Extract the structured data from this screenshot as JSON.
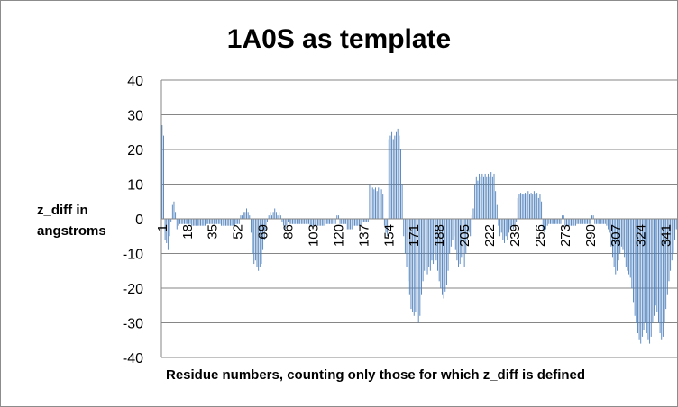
{
  "chart_data": {
    "type": "bar",
    "title": "1A0S as template",
    "ylabel_lines": [
      "z_diff in",
      "angstroms"
    ],
    "xlabel": "Residue numbers, counting only those for which z_diff is defined",
    "ylim": [
      -40,
      40
    ],
    "yticks": [
      40,
      30,
      20,
      10,
      0,
      -10,
      -20,
      -30,
      -40
    ],
    "xticks": [
      1,
      18,
      35,
      52,
      69,
      86,
      103,
      120,
      137,
      154,
      171,
      188,
      205,
      222,
      239,
      256,
      273,
      290,
      307,
      324,
      341
    ],
    "grid": "horizontal",
    "legend": "none",
    "bar_color": "#4f81bd",
    "n_residues": 348,
    "segments": [
      [
        1,
        1,
        27
      ],
      [
        2,
        2,
        24
      ],
      [
        3,
        3,
        -6
      ],
      [
        4,
        4,
        -7
      ],
      [
        5,
        5,
        -9
      ],
      [
        6,
        6,
        -5
      ],
      [
        7,
        7,
        -1
      ],
      [
        8,
        8,
        4
      ],
      [
        9,
        9,
        5
      ],
      [
        10,
        10,
        2
      ],
      [
        11,
        11,
        -3
      ],
      [
        12,
        12,
        -2
      ],
      [
        13,
        20,
        -1.5
      ],
      [
        21,
        30,
        -2
      ],
      [
        31,
        40,
        -1.5
      ],
      [
        41,
        50,
        -2
      ],
      [
        51,
        53,
        -1.5
      ],
      [
        54,
        55,
        1
      ],
      [
        56,
        57,
        2
      ],
      [
        58,
        58,
        3
      ],
      [
        59,
        59,
        2
      ],
      [
        60,
        60,
        1
      ],
      [
        61,
        61,
        -4
      ],
      [
        62,
        62,
        -10
      ],
      [
        63,
        63,
        -13
      ],
      [
        64,
        64,
        -12
      ],
      [
        65,
        65,
        -14
      ],
      [
        66,
        66,
        -15
      ],
      [
        67,
        67,
        -14
      ],
      [
        68,
        68,
        -13
      ],
      [
        69,
        69,
        -9
      ],
      [
        70,
        70,
        -6
      ],
      [
        71,
        71,
        -3
      ],
      [
        72,
        72,
        -1
      ],
      [
        73,
        73,
        1
      ],
      [
        74,
        74,
        2
      ],
      [
        75,
        75,
        1
      ],
      [
        76,
        76,
        2
      ],
      [
        77,
        77,
        3
      ],
      [
        78,
        78,
        2
      ],
      [
        79,
        79,
        1
      ],
      [
        80,
        80,
        2
      ],
      [
        81,
        81,
        1
      ],
      [
        82,
        82,
        -1
      ],
      [
        83,
        83,
        -2
      ],
      [
        84,
        84,
        -3
      ],
      [
        85,
        85,
        -2
      ],
      [
        86,
        86,
        -1
      ],
      [
        87,
        100,
        -1.5
      ],
      [
        101,
        110,
        -2
      ],
      [
        111,
        118,
        -1.5
      ],
      [
        119,
        120,
        1
      ],
      [
        121,
        125,
        -1.5
      ],
      [
        126,
        129,
        -3
      ],
      [
        130,
        135,
        -2
      ],
      [
        136,
        140,
        -1
      ],
      [
        141,
        141,
        10
      ],
      [
        142,
        142,
        9.5
      ],
      [
        143,
        143,
        9
      ],
      [
        144,
        144,
        8.5
      ],
      [
        145,
        145,
        9
      ],
      [
        146,
        146,
        8
      ],
      [
        147,
        147,
        9
      ],
      [
        148,
        148,
        8
      ],
      [
        149,
        149,
        8.5
      ],
      [
        150,
        150,
        7
      ],
      [
        151,
        151,
        -2
      ],
      [
        152,
        152,
        -4
      ],
      [
        153,
        153,
        -5
      ],
      [
        154,
        154,
        23
      ],
      [
        155,
        155,
        24
      ],
      [
        156,
        156,
        25
      ],
      [
        157,
        157,
        23
      ],
      [
        158,
        158,
        24
      ],
      [
        159,
        159,
        25
      ],
      [
        160,
        160,
        26
      ],
      [
        161,
        161,
        24
      ],
      [
        162,
        162,
        20
      ],
      [
        163,
        163,
        10
      ],
      [
        164,
        164,
        -5
      ],
      [
        165,
        165,
        -10
      ],
      [
        166,
        166,
        -14
      ],
      [
        167,
        167,
        -18
      ],
      [
        168,
        168,
        -22
      ],
      [
        169,
        169,
        -26
      ],
      [
        170,
        170,
        -27
      ],
      [
        171,
        171,
        -28
      ],
      [
        172,
        172,
        -27
      ],
      [
        173,
        173,
        -29
      ],
      [
        174,
        174,
        -30
      ],
      [
        175,
        175,
        -28
      ],
      [
        176,
        176,
        -22
      ],
      [
        177,
        177,
        -18
      ],
      [
        178,
        178,
        -15
      ],
      [
        179,
        179,
        -12
      ],
      [
        180,
        180,
        -16
      ],
      [
        181,
        181,
        -14
      ],
      [
        182,
        182,
        -15
      ],
      [
        183,
        183,
        -12
      ],
      [
        184,
        184,
        -13
      ],
      [
        185,
        185,
        -10
      ],
      [
        186,
        186,
        -12
      ],
      [
        187,
        187,
        -15
      ],
      [
        188,
        188,
        -18
      ],
      [
        189,
        189,
        -20
      ],
      [
        190,
        190,
        -22
      ],
      [
        191,
        191,
        -23
      ],
      [
        192,
        192,
        -21
      ],
      [
        193,
        193,
        -19
      ],
      [
        194,
        194,
        -15
      ],
      [
        195,
        195,
        -10
      ],
      [
        196,
        196,
        -8
      ],
      [
        197,
        197,
        -6
      ],
      [
        198,
        198,
        -5
      ],
      [
        199,
        199,
        -9
      ],
      [
        200,
        200,
        -12
      ],
      [
        201,
        201,
        -14
      ],
      [
        202,
        202,
        -13
      ],
      [
        203,
        203,
        -11
      ],
      [
        204,
        204,
        -13
      ],
      [
        205,
        205,
        -14
      ],
      [
        206,
        206,
        -10
      ],
      [
        207,
        207,
        -6
      ],
      [
        208,
        208,
        -4
      ],
      [
        209,
        209,
        -5
      ],
      [
        210,
        210,
        1
      ],
      [
        211,
        211,
        3
      ],
      [
        212,
        212,
        10
      ],
      [
        213,
        213,
        12
      ],
      [
        214,
        214,
        11
      ],
      [
        215,
        215,
        13
      ],
      [
        216,
        216,
        12
      ],
      [
        217,
        217,
        13
      ],
      [
        218,
        218,
        12
      ],
      [
        219,
        219,
        13
      ],
      [
        220,
        220,
        12
      ],
      [
        221,
        221,
        13
      ],
      [
        222,
        222,
        12
      ],
      [
        223,
        223,
        13.5
      ],
      [
        224,
        224,
        12
      ],
      [
        225,
        225,
        13
      ],
      [
        226,
        226,
        8
      ],
      [
        227,
        227,
        4
      ],
      [
        228,
        228,
        -2
      ],
      [
        229,
        229,
        -5
      ],
      [
        230,
        230,
        -4
      ],
      [
        231,
        231,
        -6
      ],
      [
        232,
        232,
        -7
      ],
      [
        233,
        233,
        -5
      ],
      [
        234,
        234,
        -6
      ],
      [
        235,
        235,
        -4
      ],
      [
        236,
        236,
        -3
      ],
      [
        237,
        237,
        -2
      ],
      [
        238,
        238,
        -3
      ],
      [
        239,
        239,
        -2
      ],
      [
        240,
        240,
        -1
      ],
      [
        241,
        241,
        6
      ],
      [
        242,
        242,
        7
      ],
      [
        243,
        243,
        7.5
      ],
      [
        244,
        244,
        7
      ],
      [
        245,
        245,
        7
      ],
      [
        246,
        246,
        7.5
      ],
      [
        247,
        247,
        7
      ],
      [
        248,
        248,
        8
      ],
      [
        249,
        249,
        7
      ],
      [
        250,
        250,
        7.5
      ],
      [
        251,
        251,
        7
      ],
      [
        252,
        252,
        8
      ],
      [
        253,
        253,
        7
      ],
      [
        254,
        254,
        7.5
      ],
      [
        255,
        255,
        6
      ],
      [
        256,
        256,
        7
      ],
      [
        257,
        257,
        5
      ],
      [
        258,
        258,
        -3
      ],
      [
        259,
        259,
        -4
      ],
      [
        260,
        260,
        -3
      ],
      [
        261,
        261,
        -2
      ],
      [
        262,
        270,
        -1.5
      ],
      [
        271,
        272,
        1
      ],
      [
        273,
        280,
        -2
      ],
      [
        281,
        290,
        -1.5
      ],
      [
        291,
        292,
        1
      ],
      [
        293,
        300,
        -1.5
      ],
      [
        301,
        301,
        -2
      ],
      [
        302,
        302,
        -3
      ],
      [
        303,
        303,
        -4
      ],
      [
        304,
        304,
        -8
      ],
      [
        305,
        305,
        -11
      ],
      [
        306,
        306,
        -14
      ],
      [
        307,
        307,
        -16
      ],
      [
        308,
        308,
        -15
      ],
      [
        309,
        309,
        -12
      ],
      [
        310,
        310,
        -10
      ],
      [
        311,
        311,
        -8
      ],
      [
        312,
        312,
        -9
      ],
      [
        313,
        313,
        -11
      ],
      [
        314,
        314,
        -14
      ],
      [
        315,
        315,
        -15
      ],
      [
        316,
        316,
        -16
      ],
      [
        317,
        317,
        -17
      ],
      [
        318,
        318,
        -20
      ],
      [
        319,
        319,
        -24
      ],
      [
        320,
        320,
        -28
      ],
      [
        321,
        321,
        -30
      ],
      [
        322,
        322,
        -33
      ],
      [
        323,
        323,
        -35
      ],
      [
        324,
        324,
        -36
      ],
      [
        325,
        325,
        -34
      ],
      [
        326,
        326,
        -32
      ],
      [
        327,
        327,
        -30
      ],
      [
        328,
        328,
        -33
      ],
      [
        329,
        329,
        -35
      ],
      [
        330,
        330,
        -36
      ],
      [
        331,
        331,
        -34
      ],
      [
        332,
        332,
        -30
      ],
      [
        333,
        333,
        -28
      ],
      [
        334,
        334,
        -25
      ],
      [
        335,
        335,
        -27
      ],
      [
        336,
        336,
        -30
      ],
      [
        337,
        337,
        -33
      ],
      [
        338,
        338,
        -35
      ],
      [
        339,
        339,
        -34
      ],
      [
        340,
        340,
        -30
      ],
      [
        341,
        341,
        -26
      ],
      [
        342,
        342,
        -22
      ],
      [
        343,
        343,
        -18
      ],
      [
        344,
        344,
        -15
      ],
      [
        345,
        345,
        -12
      ],
      [
        346,
        346,
        -10
      ],
      [
        347,
        347,
        -6
      ],
      [
        348,
        348,
        -3
      ]
    ]
  }
}
